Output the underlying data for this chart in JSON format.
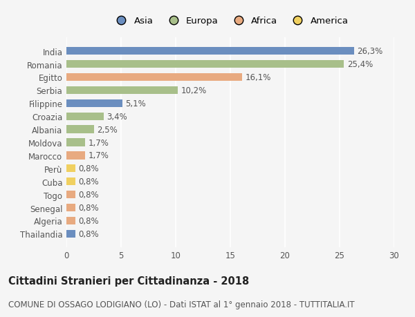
{
  "countries": [
    "India",
    "Romania",
    "Egitto",
    "Serbia",
    "Filippine",
    "Croazia",
    "Albania",
    "Moldova",
    "Marocco",
    "Perù",
    "Cuba",
    "Togo",
    "Senegal",
    "Algeria",
    "Thailandia"
  ],
  "values": [
    26.3,
    25.4,
    16.1,
    10.2,
    5.1,
    3.4,
    2.5,
    1.7,
    1.7,
    0.8,
    0.8,
    0.8,
    0.8,
    0.8,
    0.8
  ],
  "labels": [
    "26,3%",
    "25,4%",
    "16,1%",
    "10,2%",
    "5,1%",
    "3,4%",
    "2,5%",
    "1,7%",
    "1,7%",
    "0,8%",
    "0,8%",
    "0,8%",
    "0,8%",
    "0,8%",
    "0,8%"
  ],
  "continents": [
    "Asia",
    "Europa",
    "Africa",
    "Europa",
    "Asia",
    "Europa",
    "Europa",
    "Europa",
    "Africa",
    "America",
    "America",
    "Africa",
    "Africa",
    "Africa",
    "Asia"
  ],
  "colors": {
    "Asia": "#6b8ebf",
    "Europa": "#a8bf8a",
    "Africa": "#e8aa80",
    "America": "#f0d060"
  },
  "legend_labels": [
    "Asia",
    "Europa",
    "Africa",
    "America"
  ],
  "legend_colors": [
    "#6b8ebf",
    "#a8bf8a",
    "#e8aa80",
    "#f0d060"
  ],
  "title": "Cittadini Stranieri per Cittadinanza - 2018",
  "subtitle": "COMUNE DI OSSAGO LODIGIANO (LO) - Dati ISTAT al 1° gennaio 2018 - TUTTITALIA.IT",
  "xlim": [
    0,
    30
  ],
  "xticks": [
    0,
    5,
    10,
    15,
    20,
    25,
    30
  ],
  "bg_color": "#f5f5f5",
  "bar_height": 0.6,
  "title_fontsize": 10.5,
  "subtitle_fontsize": 8.5,
  "label_fontsize": 8.5,
  "tick_fontsize": 8.5,
  "legend_fontsize": 9.5
}
